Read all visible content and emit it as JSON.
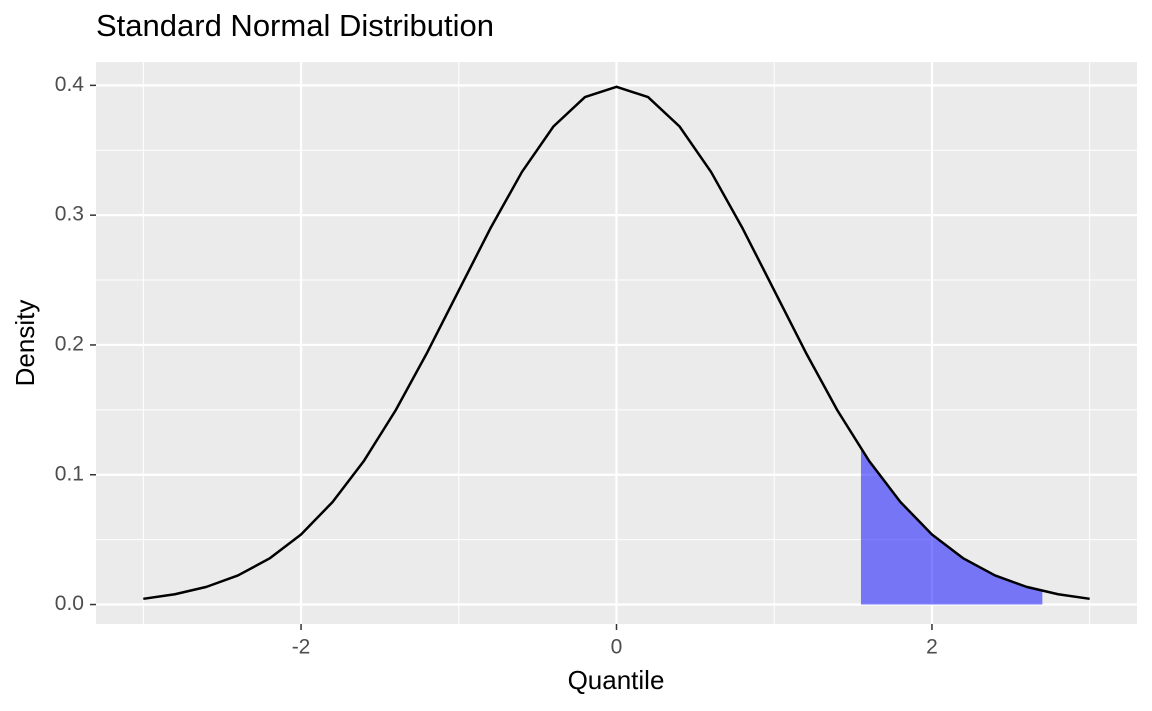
{
  "chart_data": {
    "type": "line",
    "title": "Standard Normal Distribution",
    "x_label": "Quantile",
    "y_label": "Density",
    "xlim": [
      -3.3,
      3.3
    ],
    "ylim": [
      -0.015,
      0.418
    ],
    "xticks": [
      -2,
      0,
      2
    ],
    "yticks": [
      {
        "value": 0,
        "label": "0.0"
      },
      {
        "value": 0.1,
        "label": "0.1"
      },
      {
        "value": 0.2,
        "label": "0.2"
      },
      {
        "value": 0.3,
        "label": "0.3"
      },
      {
        "value": 0.4,
        "label": "0.4"
      }
    ],
    "x_minor_ticks": [
      -3,
      -1,
      1,
      3
    ],
    "y_minor_ticks": [
      0.05,
      0.15,
      0.25,
      0.35
    ],
    "grid": true,
    "series": [
      {
        "kind": "line",
        "color": "#000000",
        "x": [
          -3,
          -2.8,
          -2.6,
          -2.4,
          -2.2,
          -2,
          -1.8,
          -1.6,
          -1.4,
          -1.2,
          -1,
          -0.8,
          -0.6,
          -0.4,
          -0.2,
          0,
          0.2,
          0.4,
          0.6,
          0.8,
          1,
          1.2,
          1.4,
          1.6,
          1.8,
          2,
          2.2,
          2.4,
          2.6,
          2.8,
          3
        ],
        "values": [
          0.0044,
          0.0079,
          0.0136,
          0.0224,
          0.0355,
          0.054,
          0.079,
          0.1109,
          0.1497,
          0.1942,
          0.242,
          0.2897,
          0.3332,
          0.3683,
          0.391,
          0.3989,
          0.391,
          0.3683,
          0.3332,
          0.2897,
          0.242,
          0.1942,
          0.1497,
          0.1109,
          0.079,
          0.054,
          0.0355,
          0.0224,
          0.0136,
          0.0079,
          0.0044
        ]
      },
      {
        "kind": "area",
        "color": "#0000ff",
        "alpha": 0.5,
        "x": [
          1.55,
          1.6,
          1.8,
          2,
          2.2,
          2.4,
          2.6,
          2.7
        ],
        "values": [
          0.12,
          0.1109,
          0.079,
          0.054,
          0.0355,
          0.0224,
          0.0136,
          0.0104
        ]
      }
    ]
  }
}
